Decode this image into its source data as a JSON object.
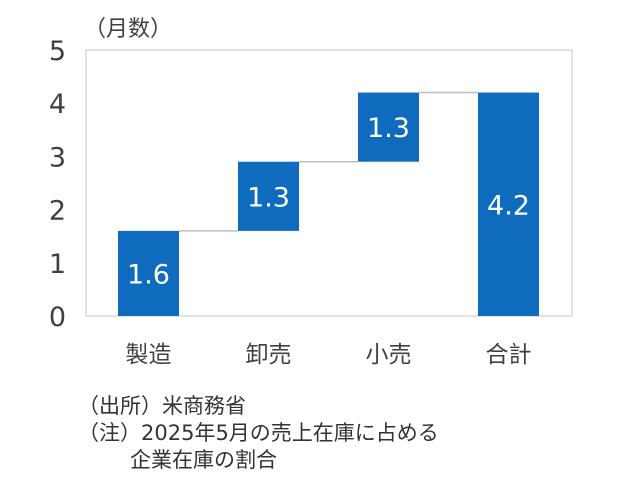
{
  "chart_data": {
    "type": "bar",
    "subtype": "waterfall",
    "unit_label": "（月数）",
    "categories": [
      "製造",
      "卸売",
      "小売",
      "合計"
    ],
    "values": [
      1.6,
      1.3,
      1.3,
      4.2
    ],
    "value_labels": [
      "1.6",
      "1.3",
      "1.3",
      "4.2"
    ],
    "bases": [
      0,
      1.6,
      2.9,
      0
    ],
    "ylim": [
      0,
      5
    ],
    "yticks": [
      "0",
      "1",
      "2",
      "3",
      "4",
      "5"
    ],
    "colors": {
      "bar": "#0f6bbe",
      "connector": "#bfbfbf",
      "frame": "#d9d9d9"
    },
    "grid": false,
    "legend": "none"
  },
  "notes": {
    "source": "（出所）米商務省",
    "note_line1": "（注）2025年5月の売上在庫に占める",
    "note_line2": "企業在庫の割合"
  }
}
